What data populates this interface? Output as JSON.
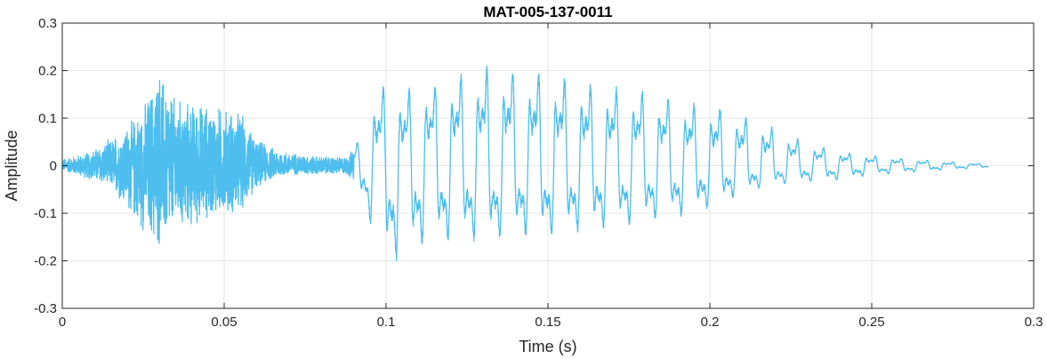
{
  "chart_data": {
    "type": "line",
    "title": "MAT-005-137-0011",
    "xlabel": "Time (s)",
    "ylabel": "Amplitude",
    "xlim": [
      0,
      0.3
    ],
    "ylim": [
      -0.3,
      0.3
    ],
    "xticks": [
      0,
      0.05,
      0.1,
      0.15,
      0.2,
      0.25,
      0.3
    ],
    "xtick_labels": [
      "0",
      "0.05",
      "0.1",
      "0.15",
      "0.2",
      "0.25",
      "0.3"
    ],
    "yticks": [
      -0.3,
      -0.2,
      -0.1,
      0,
      0.1,
      0.2,
      0.3
    ],
    "ytick_labels": [
      "-0.3",
      "-0.2",
      "-0.1",
      "0",
      "0.1",
      "0.2",
      "0.3"
    ],
    "grid": true,
    "colors": {
      "line": "#4DBEEE",
      "grid": "#e6e6e6",
      "axes": "#262626"
    },
    "series": [
      {
        "duration_s": 0.286,
        "envelope": {
          "t": [
            0,
            0.008,
            0.015,
            0.02,
            0.025,
            0.03,
            0.035,
            0.04,
            0.045,
            0.05,
            0.055,
            0.06,
            0.065,
            0.07,
            0.08,
            0.088,
            0.092,
            0.095,
            0.1,
            0.105,
            0.11,
            0.12,
            0.13,
            0.14,
            0.15,
            0.16,
            0.17,
            0.18,
            0.19,
            0.2,
            0.21,
            0.22,
            0.23,
            0.24,
            0.25,
            0.26,
            0.27,
            0.28,
            0.286
          ],
          "upper": [
            0.015,
            0.03,
            0.06,
            0.09,
            0.13,
            0.22,
            0.15,
            0.14,
            0.14,
            0.13,
            0.12,
            0.06,
            0.04,
            0.03,
            0.02,
            0.02,
            0.06,
            0.14,
            0.18,
            0.16,
            0.17,
            0.19,
            0.215,
            0.21,
            0.2,
            0.18,
            0.17,
            0.16,
            0.14,
            0.13,
            0.11,
            0.08,
            0.05,
            0.03,
            0.022,
            0.015,
            0.01,
            0.006,
            0.004
          ],
          "lower": [
            -0.01,
            -0.03,
            -0.05,
            -0.1,
            -0.15,
            -0.19,
            -0.15,
            -0.14,
            -0.12,
            -0.11,
            -0.11,
            -0.05,
            -0.03,
            -0.02,
            -0.02,
            -0.02,
            -0.06,
            -0.12,
            -0.2,
            -0.205,
            -0.17,
            -0.16,
            -0.16,
            -0.15,
            -0.15,
            -0.14,
            -0.13,
            -0.12,
            -0.11,
            -0.09,
            -0.06,
            -0.04,
            -0.035,
            -0.03,
            -0.02,
            -0.015,
            -0.01,
            -0.006,
            -0.004
          ]
        }
      }
    ]
  }
}
